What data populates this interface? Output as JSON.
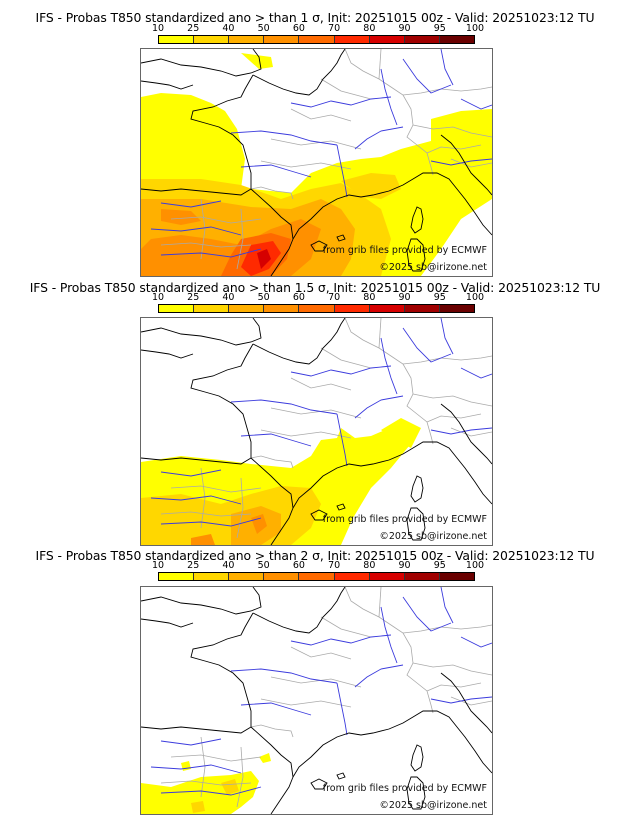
{
  "colorbar": {
    "ticks": [
      "10",
      "25",
      "40",
      "50",
      "60",
      "70",
      "80",
      "90",
      "95",
      "100"
    ],
    "colors": [
      "#ffff00",
      "#ffd700",
      "#ffb000",
      "#ff9000",
      "#ff6a00",
      "#ff2a00",
      "#d60000",
      "#a00000",
      "#6a0000"
    ]
  },
  "map_style": {
    "coast": "#000000",
    "borders": "#aaaaaa",
    "rivers": "#3b3bdd",
    "sea": "#ffffff"
  },
  "panels": [
    {
      "title": "IFS - Probas T850  standardized ano > than 1 σ, Init: 20251015 00z - Valid: 20251023:12 TU",
      "threshold_sigma": "1",
      "credit_source": "from grib files provided by ECMWF",
      "credit_copyright": "©2025 sb@irizone.net",
      "max_probability_class": "80"
    },
    {
      "title": "IFS - Probas T850  standardized ano > than 1.5 σ, Init: 20251015 00z - Valid: 20251023:12 TU",
      "threshold_sigma": "1.5",
      "credit_source": "from grib files provided by ECMWF",
      "credit_copyright": "©2025 sb@irizone.net",
      "max_probability_class": "70"
    },
    {
      "title": "IFS - Probas T850  standardized ano > than 2 σ, Init: 20251015 00z - Valid: 20251023:12 TU",
      "threshold_sigma": "2",
      "credit_source": "from grib files provided by ECMWF",
      "credit_copyright": "©2025 sb@irizone.net",
      "max_probability_class": "40"
    }
  ]
}
